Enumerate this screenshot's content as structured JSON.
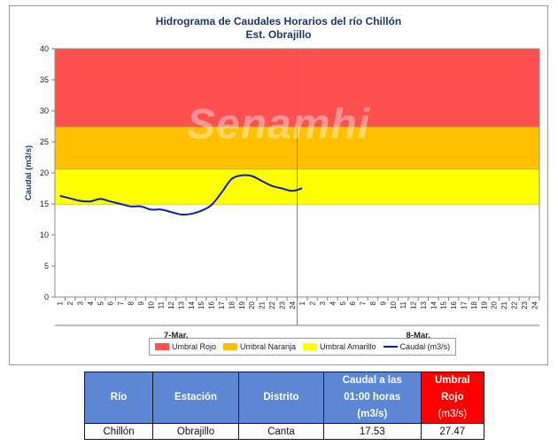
{
  "chart_data": {
    "type": "line",
    "title": "Hidrograma de Caudales Horarios del río Chillón",
    "subtitle": "Est. Obrajillo",
    "ylabel": "Caudal  (m3/s)",
    "ylim": [
      0,
      40
    ],
    "y_ticks": [
      "0",
      "5",
      "10",
      "15",
      "20",
      "25",
      "30",
      "35",
      "40"
    ],
    "x_ticks": [
      "1",
      "2",
      "3",
      "4",
      "5",
      "6",
      "7",
      "8",
      "9",
      "10",
      "11",
      "12",
      "13",
      "14",
      "15",
      "16",
      "17",
      "18",
      "19",
      "20",
      "21",
      "22",
      "23",
      "24",
      "1",
      "2",
      "3",
      "4",
      "5",
      "6",
      "7",
      "8",
      "9",
      "10",
      "11",
      "12",
      "13",
      "14",
      "15",
      "16",
      "17",
      "18",
      "19",
      "20",
      "21",
      "22",
      "23",
      "24"
    ],
    "day_labels": [
      "7-Mar.",
      "8-Mar."
    ],
    "bands": [
      {
        "name": "Umbral Rojo",
        "from": 27.47,
        "to": 40,
        "color": "#ff5050"
      },
      {
        "name": "Umbral Naranja",
        "from": 20.6,
        "to": 27.47,
        "color": "#ffc000"
      },
      {
        "name": "Umbral Amarillo",
        "from": 14.9,
        "to": 20.6,
        "color": "#ffff00"
      }
    ],
    "series": [
      {
        "name": "Caudal (m3/s)",
        "color": "#0a1fb0",
        "values": [
          16.3,
          15.9,
          15.5,
          15.4,
          15.8,
          15.4,
          15.0,
          14.6,
          14.6,
          14.1,
          14.1,
          13.7,
          13.3,
          13.4,
          13.9,
          14.8,
          16.8,
          19.0,
          19.6,
          19.5,
          18.7,
          17.9,
          17.5,
          17.1,
          17.53
        ]
      }
    ],
    "legend_position": "bottom",
    "watermark": "Senamhi"
  },
  "table": {
    "headers": {
      "rio": "Río",
      "estacion": "Estación",
      "distrito": "Distrito",
      "caudal_line1": "Caudal a las",
      "caudal_line2": "01:00 horas",
      "caudal_unit": "(m3/s)",
      "umbral_line1": "Umbral",
      "umbral_line2": "Rojo",
      "umbral_unit": "(m3/s)"
    },
    "row": {
      "rio": "Chillón",
      "estacion": "Obrajillo",
      "distrito": "Canta",
      "caudal": "17.53",
      "umbral": "27.47"
    },
    "umbral_color": "#ff0000",
    "header_color": "#5b87d4"
  }
}
